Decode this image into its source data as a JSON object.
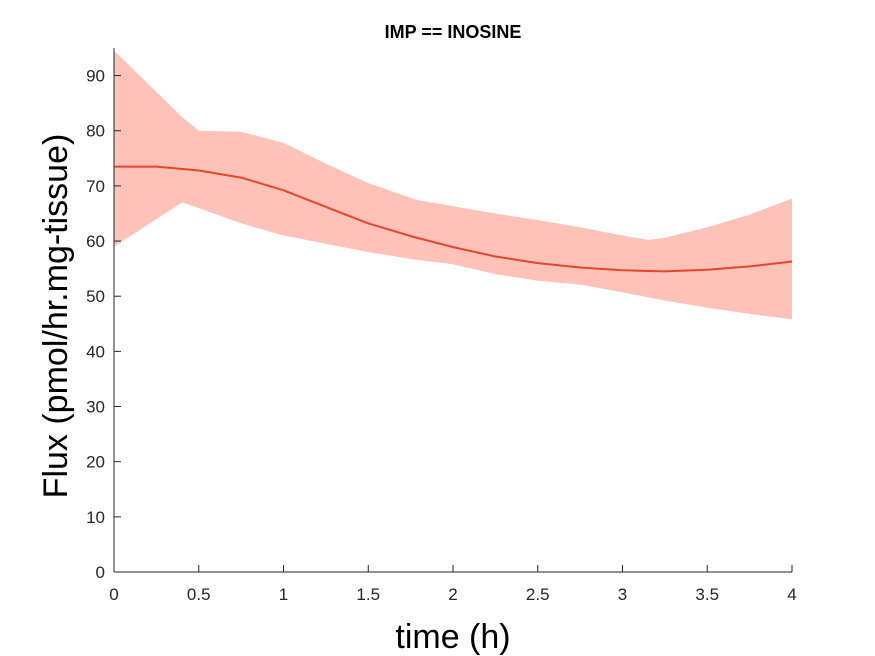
{
  "chart_data": {
    "type": "line",
    "title": "IMP == INOSINE",
    "xlabel": "time (h)",
    "ylabel": "Flux (pmol/hr.mg-tissue)",
    "xlim": [
      0,
      4
    ],
    "ylim": [
      0,
      95
    ],
    "xticks": [
      "0",
      "0.5",
      "1",
      "1.5",
      "2",
      "2.5",
      "3",
      "3.5",
      "4"
    ],
    "yticks": [
      "0",
      "10",
      "20",
      "30",
      "40",
      "50",
      "60",
      "70",
      "80",
      "90"
    ],
    "grid": false,
    "colors": {
      "line": "#e8452a",
      "band": "#ffc2b8",
      "axis": "#262626"
    },
    "series": [
      {
        "x": [
          0,
          0.25,
          0.5,
          0.75,
          1,
          1.25,
          1.5,
          1.75,
          2,
          2.25,
          2.5,
          2.75,
          3,
          3.25,
          3.5,
          3.75,
          4
        ],
        "y": [
          73.5,
          73.5,
          72.8,
          71.5,
          69.2,
          66.2,
          63.2,
          60.9,
          58.9,
          57.2,
          56.0,
          55.2,
          54.7,
          54.5,
          54.8,
          55.4,
          56.3
        ]
      }
    ],
    "band": {
      "x": [
        0,
        0.25,
        0.4,
        0.5,
        0.75,
        1,
        1.25,
        1.5,
        1.78,
        2,
        2.25,
        2.5,
        2.75,
        3,
        3.15,
        3.25,
        3.5,
        3.75,
        4
      ],
      "upper": [
        94.5,
        87.0,
        82.5,
        80.0,
        79.8,
        77.8,
        74.0,
        70.5,
        67.5,
        66.3,
        65.0,
        63.8,
        62.5,
        61.0,
        60.2,
        60.6,
        62.5,
        64.8,
        67.7
      ],
      "lower": [
        59.0,
        64.0,
        67.0,
        66.0,
        63.2,
        61.0,
        59.5,
        58.0,
        56.6,
        55.8,
        54.0,
        52.8,
        52.1,
        50.7,
        49.8,
        49.2,
        47.9,
        46.8,
        45.8
      ]
    }
  }
}
